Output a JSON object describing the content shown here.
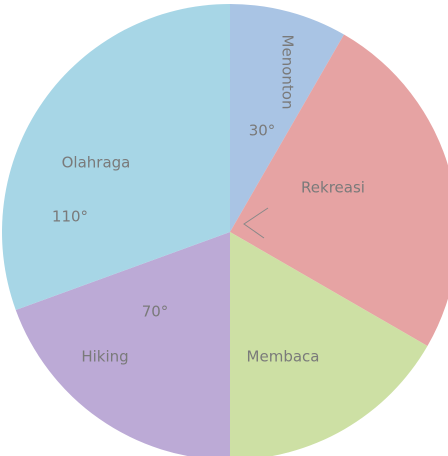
{
  "chart_data": {
    "type": "pie",
    "categories": [
      "Menonton",
      "Rekreasi",
      "Membaca",
      "Hiking",
      "Olahraga"
    ],
    "values": [
      30,
      90,
      60,
      70,
      110
    ],
    "value_labels": [
      "30°",
      null,
      null,
      "70°",
      "110°"
    ],
    "colors": [
      "#a9c4e4",
      "#e6a3a3",
      "#cde0a4",
      "#bcaad6",
      "#a7d6e6"
    ]
  }
}
